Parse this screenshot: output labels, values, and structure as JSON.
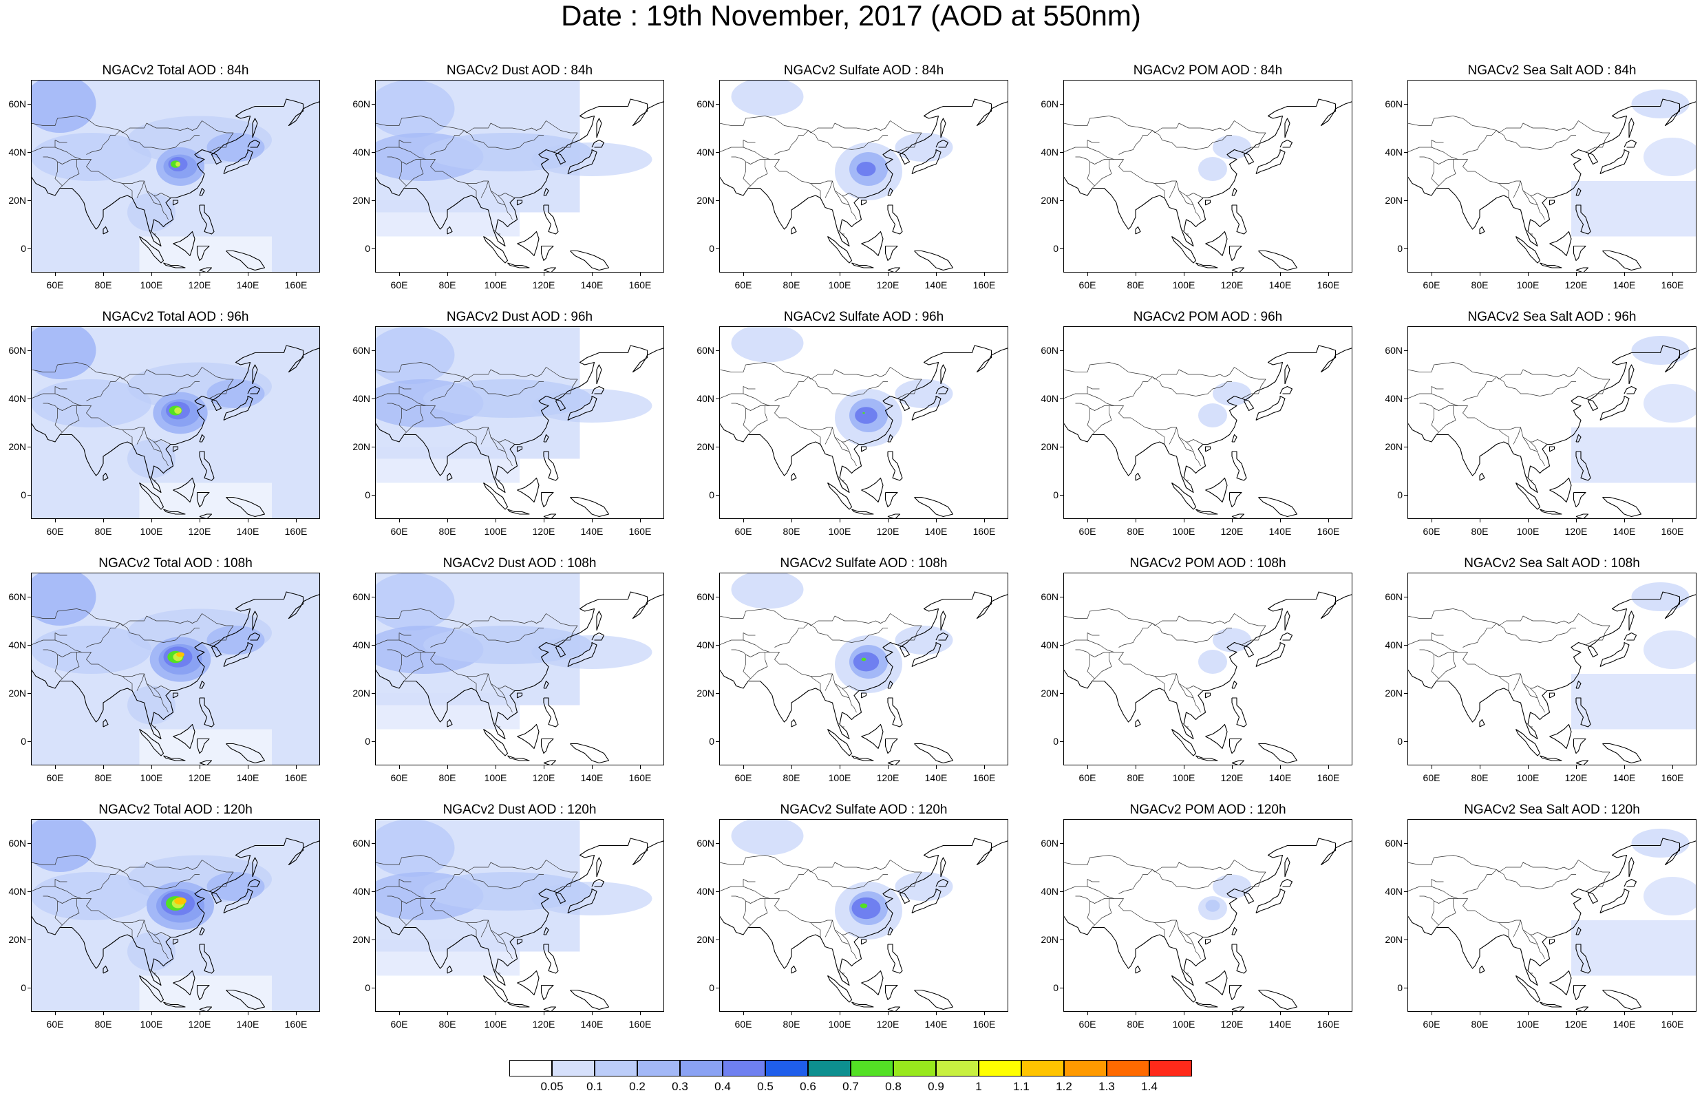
{
  "title": "Date : 19th November, 2017 (AOD at 550nm)",
  "map_region": {
    "lon_range": [
      50,
      170
    ],
    "lat_range": [
      -10,
      70
    ],
    "x_ticks": [
      "60E",
      "80E",
      "100E",
      "120E",
      "140E",
      "160E"
    ],
    "y_ticks": [
      "60N",
      "40N",
      "20N",
      "0"
    ]
  },
  "panels": [
    {
      "title": "NGACv2 Total AOD : 84h",
      "species": "total",
      "hour": 84
    },
    {
      "title": "NGACv2 Dust AOD : 84h",
      "species": "dust",
      "hour": 84
    },
    {
      "title": "NGACv2 Sulfate AOD : 84h",
      "species": "sulfate",
      "hour": 84
    },
    {
      "title": "NGACv2 POM AOD : 84h",
      "species": "pom",
      "hour": 84
    },
    {
      "title": "NGACv2 Sea Salt AOD : 84h",
      "species": "seasalt",
      "hour": 84
    },
    {
      "title": "NGACv2 Total AOD : 96h",
      "species": "total",
      "hour": 96
    },
    {
      "title": "NGACv2 Dust AOD : 96h",
      "species": "dust",
      "hour": 96
    },
    {
      "title": "NGACv2 Sulfate AOD : 96h",
      "species": "sulfate",
      "hour": 96
    },
    {
      "title": "NGACv2 POM AOD : 96h",
      "species": "pom",
      "hour": 96
    },
    {
      "title": "NGACv2 Sea Salt AOD : 96h",
      "species": "seasalt",
      "hour": 96
    },
    {
      "title": "NGACv2 Total AOD : 108h",
      "species": "total",
      "hour": 108
    },
    {
      "title": "NGACv2 Dust AOD : 108h",
      "species": "dust",
      "hour": 108
    },
    {
      "title": "NGACv2 Sulfate AOD : 108h",
      "species": "sulfate",
      "hour": 108
    },
    {
      "title": "NGACv2 POM AOD : 108h",
      "species": "pom",
      "hour": 108
    },
    {
      "title": "NGACv2 Sea Salt AOD : 108h",
      "species": "seasalt",
      "hour": 108
    },
    {
      "title": "NGACv2 Total AOD : 120h",
      "species": "total",
      "hour": 120
    },
    {
      "title": "NGACv2 Dust AOD : 120h",
      "species": "dust",
      "hour": 120
    },
    {
      "title": "NGACv2 Sulfate AOD : 120h",
      "species": "sulfate",
      "hour": 120
    },
    {
      "title": "NGACv2 POM AOD : 120h",
      "species": "pom",
      "hour": 120
    },
    {
      "title": "NGACv2 Sea Salt  AOD : 120h",
      "species": "seasalt",
      "hour": 120
    }
  ],
  "colorbar": {
    "labels": [
      "0.05",
      "0.1",
      "0.2",
      "0.3",
      "0.4",
      "0.5",
      "0.6",
      "0.7",
      "0.8",
      "0.9",
      "1",
      "1.1",
      "1.2",
      "1.3",
      "1.4"
    ],
    "colors": [
      "#ffffff",
      "#d6e0fb",
      "#bccdf9",
      "#a3b8f7",
      "#8aa2f3",
      "#6f80f0",
      "#1f5eeb",
      "#0d8f8f",
      "#53e025",
      "#98e81d",
      "#c8f040",
      "#ffff00",
      "#ffc400",
      "#ff9a00",
      "#ff6a00",
      "#ff2a1a"
    ]
  }
}
